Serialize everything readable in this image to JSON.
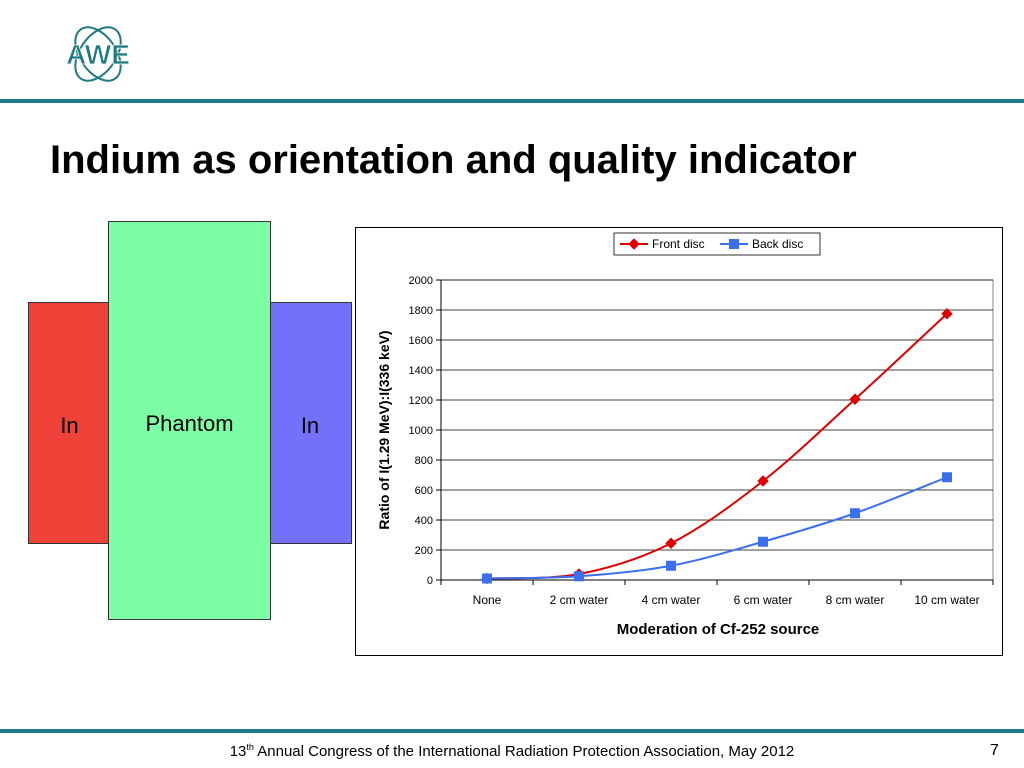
{
  "logo": {
    "text": "AWE",
    "color": "#1e7b7f",
    "icon": "atom-orbit-logo"
  },
  "slide": {
    "title": "Indium as orientation and quality indicator",
    "page_number": "7"
  },
  "diagram": {
    "left_label": "In",
    "center_label": "Phantom",
    "right_label": "In",
    "colors": {
      "left": "#ee4239",
      "center": "#7dfda4",
      "right": "#7570fa"
    }
  },
  "footer": {
    "ordinal": "13",
    "ordinal_suffix": "th",
    "text": " Annual Congress of the International Radiation Protection Association, May 2012"
  },
  "chart_data": {
    "type": "line",
    "categories": [
      "None",
      "2 cm water",
      "4 cm water",
      "6 cm water",
      "8 cm water",
      "10 cm water"
    ],
    "series": [
      {
        "name": "Front disc",
        "values": [
          10,
          40,
          245,
          660,
          1205,
          1775
        ],
        "color": "#e00000",
        "marker": "diamond"
      },
      {
        "name": "Back disc",
        "values": [
          10,
          25,
          95,
          255,
          445,
          685
        ],
        "color": "#3a6ff0",
        "marker": "square"
      }
    ],
    "xlabel": "Moderation of Cf-252 source",
    "ylabel": "Ratio of I(1.29 MeV):I(336 keV)",
    "ylim": [
      0,
      2000
    ],
    "yticks": [
      0,
      200,
      400,
      600,
      800,
      1000,
      1200,
      1400,
      1600,
      1800,
      2000
    ],
    "grid": true,
    "legend": "top"
  }
}
